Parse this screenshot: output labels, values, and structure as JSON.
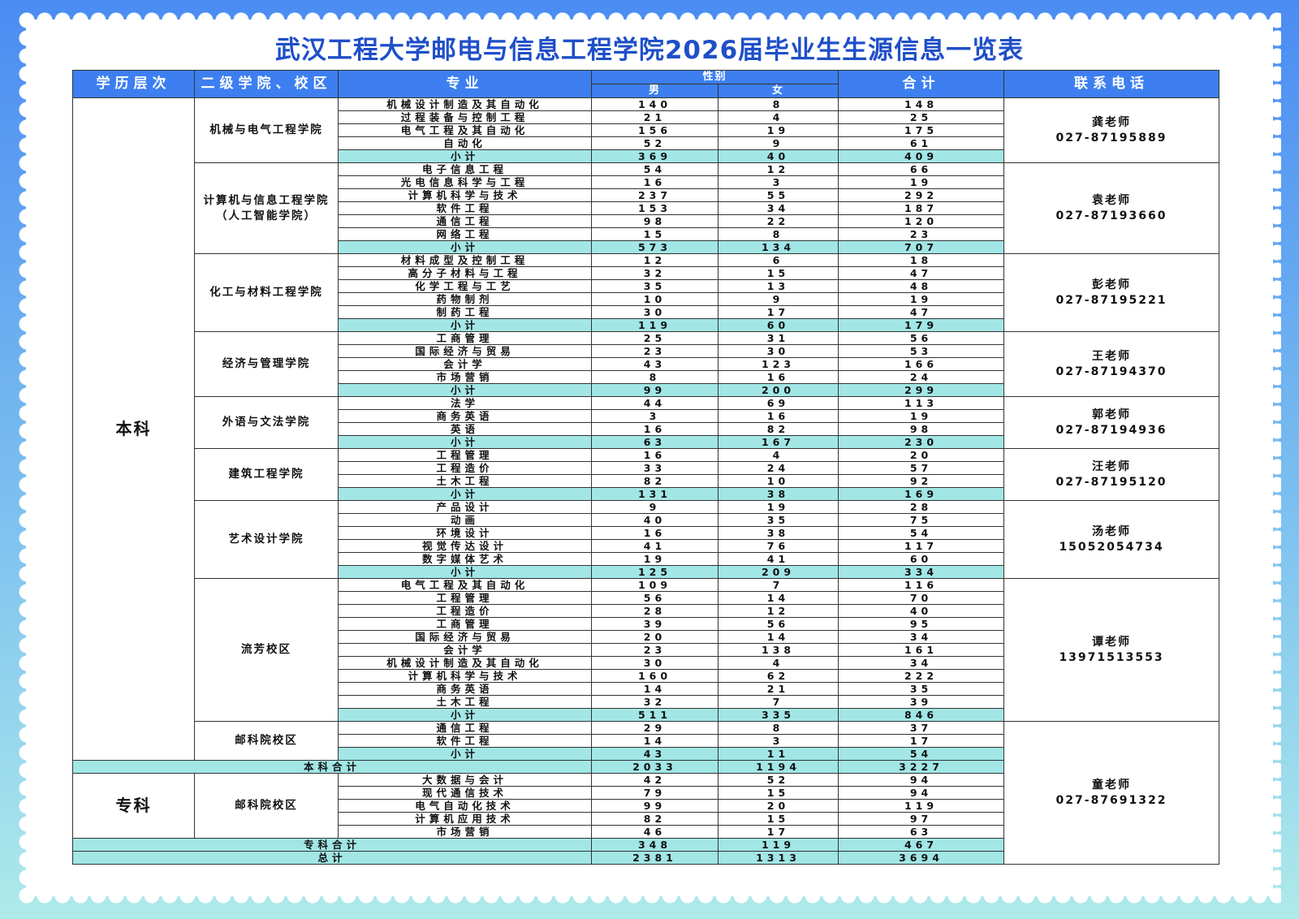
{
  "title": "武汉工程大学邮电与信息工程学院2026届毕业生生源信息一览表",
  "table": {
    "headers": {
      "level": "学历层次",
      "college": "二级学院、校区",
      "major": "专业",
      "gender": "性别",
      "male": "男",
      "female": "女",
      "total": "合计",
      "contact": "联系电话"
    },
    "sections": [
      {
        "level": "本科",
        "groups": [
          {
            "college": "机械与电气工程学院",
            "contact": {
              "name": "龚老师",
              "phone": "027-87195889"
            },
            "rows": [
              {
                "major": "机械设计制造及其自动化",
                "male": 140,
                "female": 8,
                "total": 148
              },
              {
                "major": "过程装备与控制工程",
                "male": 21,
                "female": 4,
                "total": 25
              },
              {
                "major": "电气工程及其自动化",
                "male": 156,
                "female": 19,
                "total": 175
              },
              {
                "major": "自动化",
                "male": 52,
                "female": 9,
                "total": 61
              }
            ],
            "subtotal": {
              "label": "小计",
              "male": 369,
              "female": 40,
              "total": 409
            }
          },
          {
            "college": "计算机与信息工程学院（人工智能学院）",
            "contact": {
              "name": "袁老师",
              "phone": "027-87193660"
            },
            "rows": [
              {
                "major": "电子信息工程",
                "male": 54,
                "female": 12,
                "total": 66
              },
              {
                "major": "光电信息科学与工程",
                "male": 16,
                "female": 3,
                "total": 19
              },
              {
                "major": "计算机科学与技术",
                "male": 237,
                "female": 55,
                "total": 292
              },
              {
                "major": "软件工程",
                "male": 153,
                "female": 34,
                "total": 187
              },
              {
                "major": "通信工程",
                "male": 98,
                "female": 22,
                "total": 120
              },
              {
                "major": "网络工程",
                "male": 15,
                "female": 8,
                "total": 23
              }
            ],
            "subtotal": {
              "label": "小计",
              "male": 573,
              "female": 134,
              "total": 707
            }
          },
          {
            "college": "化工与材料工程学院",
            "contact": {
              "name": "彭老师",
              "phone": "027-87195221"
            },
            "rows": [
              {
                "major": "材料成型及控制工程",
                "male": 12,
                "female": 6,
                "total": 18
              },
              {
                "major": "高分子材料与工程",
                "male": 32,
                "female": 15,
                "total": 47
              },
              {
                "major": "化学工程与工艺",
                "male": 35,
                "female": 13,
                "total": 48
              },
              {
                "major": "药物制剂",
                "male": 10,
                "female": 9,
                "total": 19
              },
              {
                "major": "制药工程",
                "male": 30,
                "female": 17,
                "total": 47
              }
            ],
            "subtotal": {
              "label": "小计",
              "male": 119,
              "female": 60,
              "total": 179
            }
          },
          {
            "college": "经济与管理学院",
            "contact": {
              "name": "王老师",
              "phone": "027-87194370"
            },
            "rows": [
              {
                "major": "工商管理",
                "male": 25,
                "female": 31,
                "total": 56
              },
              {
                "major": "国际经济与贸易",
                "male": 23,
                "female": 30,
                "total": 53
              },
              {
                "major": "会计学",
                "male": 43,
                "female": 123,
                "total": 166
              },
              {
                "major": "市场营销",
                "male": 8,
                "female": 16,
                "total": 24
              }
            ],
            "subtotal": {
              "label": "小计",
              "male": 99,
              "female": 200,
              "total": 299
            }
          },
          {
            "college": "外语与文法学院",
            "contact": {
              "name": "郭老师",
              "phone": "027-87194936"
            },
            "rows": [
              {
                "major": "法学",
                "male": 44,
                "female": 69,
                "total": 113
              },
              {
                "major": "商务英语",
                "male": 3,
                "female": 16,
                "total": 19
              },
              {
                "major": "英语",
                "male": 16,
                "female": 82,
                "total": 98
              }
            ],
            "subtotal": {
              "label": "小计",
              "male": 63,
              "female": 167,
              "total": 230
            }
          },
          {
            "college": "建筑工程学院",
            "contact": {
              "name": "汪老师",
              "phone": "027-87195120"
            },
            "rows": [
              {
                "major": "工程管理",
                "male": 16,
                "female": 4,
                "total": 20
              },
              {
                "major": "工程造价",
                "male": 33,
                "female": 24,
                "total": 57
              },
              {
                "major": "土木工程",
                "male": 82,
                "female": 10,
                "total": 92
              }
            ],
            "subtotal": {
              "label": "小计",
              "male": 131,
              "female": 38,
              "total": 169
            }
          },
          {
            "college": "艺术设计学院",
            "contact": {
              "name": "汤老师",
              "phone": "15052054734"
            },
            "rows": [
              {
                "major": "产品设计",
                "male": 9,
                "female": 19,
                "total": 28
              },
              {
                "major": "动画",
                "male": 40,
                "female": 35,
                "total": 75
              },
              {
                "major": "环境设计",
                "male": 16,
                "female": 38,
                "total": 54
              },
              {
                "major": "视觉传达设计",
                "male": 41,
                "female": 76,
                "total": 117
              },
              {
                "major": "数字媒体艺术",
                "male": 19,
                "female": 41,
                "total": 60
              }
            ],
            "subtotal": {
              "label": "小计",
              "male": 125,
              "female": 209,
              "total": 334
            }
          },
          {
            "college": "流芳校区",
            "contact": {
              "name": "谭老师",
              "phone": "13971513553"
            },
            "rows": [
              {
                "major": "电气工程及其自动化",
                "male": 109,
                "female": 7,
                "total": 116
              },
              {
                "major": "工程管理",
                "male": 56,
                "female": 14,
                "total": 70
              },
              {
                "major": "工程造价",
                "male": 28,
                "female": 12,
                "total": 40
              },
              {
                "major": "工商管理",
                "male": 39,
                "female": 56,
                "total": 95
              },
              {
                "major": "国际经济与贸易",
                "male": 20,
                "female": 14,
                "total": 34
              },
              {
                "major": "会计学",
                "male": 23,
                "female": 138,
                "total": 161
              },
              {
                "major": "机械设计制造及其自动化",
                "male": 30,
                "female": 4,
                "total": 34
              },
              {
                "major": "计算机科学与技术",
                "male": 160,
                "female": 62,
                "total": 222
              },
              {
                "major": "商务英语",
                "male": 14,
                "female": 21,
                "total": 35
              },
              {
                "major": "土木工程",
                "male": 32,
                "female": 7,
                "total": 39
              }
            ],
            "subtotal": {
              "label": "小计",
              "male": 511,
              "female": 335,
              "total": 846
            }
          },
          {
            "college": "邮科院校区",
            "contact": {
              "name": "童老师",
              "phone": "027-87691322"
            },
            "rows": [
              {
                "major": "通信工程",
                "male": 29,
                "female": 8,
                "total": 37
              },
              {
                "major": "软件工程",
                "male": 14,
                "female": 3,
                "total": 17
              }
            ],
            "subtotal": {
              "label": "小计",
              "male": 43,
              "female": 11,
              "total": 54
            }
          }
        ],
        "summary": {
          "label": "本科合计",
          "male": 2033,
          "female": 1194,
          "total": 3227
        }
      },
      {
        "level": "专科",
        "groups": [
          {
            "college": "邮科院校区",
            "rows": [
              {
                "major": "大数据与会计",
                "male": 42,
                "female": 52,
                "total": 94
              },
              {
                "major": "现代通信技术",
                "male": 79,
                "female": 15,
                "total": 94
              },
              {
                "major": "电气自动化技术",
                "male": 99,
                "female": 20,
                "total": 119
              },
              {
                "major": "计算机应用技术",
                "male": 82,
                "female": 15,
                "total": 97
              },
              {
                "major": "市场营销",
                "male": 46,
                "female": 17,
                "total": 63
              }
            ]
          }
        ],
        "summary": {
          "label": "专科合计",
          "male": 348,
          "female": 119,
          "total": 467
        }
      }
    ],
    "grand_total": {
      "label": "总计",
      "male": 2381,
      "female": 1313,
      "total": 3694
    }
  }
}
